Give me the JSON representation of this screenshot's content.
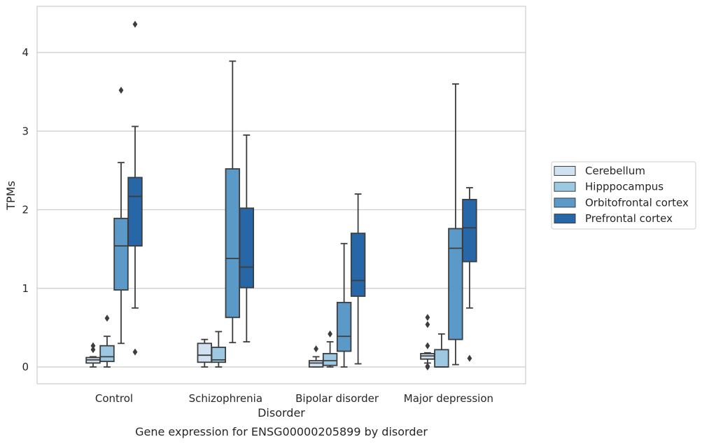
{
  "caption": "Gene expression for ENSG00000205899 by disorder",
  "chart_data": {
    "type": "box",
    "title": "",
    "xlabel": "Disorder",
    "ylabel": "TPMs",
    "ylim": [
      -0.2,
      4.6
    ],
    "yticks": [
      0,
      1,
      2,
      3,
      4
    ],
    "grid": "horizontal",
    "legend_position": "right",
    "categories": [
      "Control",
      "Schizophrenia",
      "Bipolar disorder",
      "Major depression"
    ],
    "series": [
      {
        "name": "Cerebellum",
        "color": "#d0e1f1",
        "boxes": [
          {
            "whisker_low": 0.0,
            "q1": 0.05,
            "median": 0.09,
            "q3": 0.12,
            "whisker_high": 0.13,
            "outliers": [
              0.22,
              0.27
            ]
          },
          {
            "whisker_low": 0.0,
            "q1": 0.06,
            "median": 0.15,
            "q3": 0.3,
            "whisker_high": 0.35,
            "outliers": []
          },
          {
            "whisker_low": 0.0,
            "q1": 0.0,
            "median": 0.05,
            "q3": 0.08,
            "whisker_high": 0.13,
            "outliers": [
              0.23
            ]
          },
          {
            "whisker_low": 0.05,
            "q1": 0.1,
            "median": 0.14,
            "q3": 0.17,
            "whisker_high": 0.18,
            "outliers": [
              0.0,
              0.01,
              0.27,
              0.54,
              0.63
            ]
          }
        ]
      },
      {
        "name": "Hipppocampus",
        "color": "#9dc8e1",
        "boxes": [
          {
            "whisker_low": 0.0,
            "q1": 0.07,
            "median": 0.13,
            "q3": 0.27,
            "whisker_high": 0.39,
            "outliers": [
              0.62
            ]
          },
          {
            "whisker_low": 0.0,
            "q1": 0.06,
            "median": 0.09,
            "q3": 0.25,
            "whisker_high": 0.45,
            "outliers": []
          },
          {
            "whisker_low": 0.0,
            "q1": 0.02,
            "median": 0.08,
            "q3": 0.17,
            "whisker_high": 0.32,
            "outliers": [
              0.42
            ]
          },
          {
            "whisker_low": 0.0,
            "q1": 0.0,
            "median": 0.0,
            "q3": 0.22,
            "whisker_high": 0.42,
            "outliers": []
          }
        ]
      },
      {
        "name": "Orbitofrontal cortex",
        "color": "#5b9ac8",
        "boxes": [
          {
            "whisker_low": 0.3,
            "q1": 0.98,
            "median": 1.54,
            "q3": 1.89,
            "whisker_high": 2.6,
            "outliers": [
              3.52
            ]
          },
          {
            "whisker_low": 0.31,
            "q1": 0.63,
            "median": 1.38,
            "q3": 2.52,
            "whisker_high": 3.89,
            "outliers": []
          },
          {
            "whisker_low": 0.0,
            "q1": 0.2,
            "median": 0.39,
            "q3": 0.82,
            "whisker_high": 1.57,
            "outliers": []
          },
          {
            "whisker_low": 0.03,
            "q1": 0.35,
            "median": 1.51,
            "q3": 1.76,
            "whisker_high": 3.6,
            "outliers": []
          }
        ]
      },
      {
        "name": "Prefrontal cortex",
        "color": "#2767a8",
        "boxes": [
          {
            "whisker_low": 0.75,
            "q1": 1.54,
            "median": 2.17,
            "q3": 2.41,
            "whisker_high": 3.06,
            "outliers": [
              0.19,
              4.36
            ]
          },
          {
            "whisker_low": 0.32,
            "q1": 1.01,
            "median": 1.27,
            "q3": 2.02,
            "whisker_high": 2.95,
            "outliers": []
          },
          {
            "whisker_low": 0.04,
            "q1": 0.9,
            "median": 1.1,
            "q3": 1.7,
            "whisker_high": 2.2,
            "outliers": []
          },
          {
            "whisker_low": 0.75,
            "q1": 1.34,
            "median": 1.77,
            "q3": 2.13,
            "whisker_high": 2.28,
            "outliers": [
              0.11
            ]
          }
        ]
      }
    ]
  }
}
